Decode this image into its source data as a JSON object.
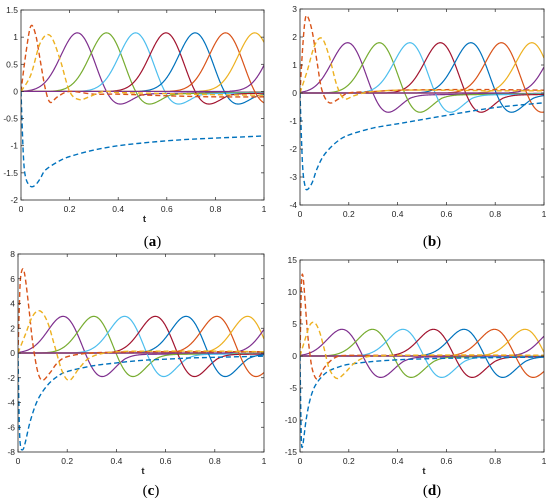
{
  "chart_data": [
    {
      "type": "line",
      "panel_label": "(a)",
      "panel_letter": "a",
      "xlabel": "t",
      "xlim": [
        0,
        1
      ],
      "ylim": [
        -2,
        1.5
      ],
      "xticks": [
        0,
        0.2,
        0.4,
        0.6,
        0.8,
        1
      ],
      "yticks": [
        -2,
        -1.5,
        -1,
        -0.5,
        0,
        0.5,
        1,
        1.5
      ],
      "xtick_labels": [
        "0",
        "0.2",
        "0.4",
        "0.6",
        "0.8",
        "1"
      ],
      "ytick_labels": [
        "-2",
        "-1.5",
        "-1",
        "-0.5",
        "0",
        "0.5",
        "1",
        "1.5"
      ],
      "dashed_series": [
        {
          "color": "#0072BD",
          "x": [
            0,
            0.01,
            0.02,
            0.04,
            0.06,
            0.08,
            0.1,
            0.15,
            0.2,
            0.3,
            0.4,
            0.5,
            0.6,
            0.7,
            0.8,
            0.9,
            1
          ],
          "y": [
            0,
            -1.2,
            -1.6,
            -1.75,
            -1.72,
            -1.6,
            -1.45,
            -1.3,
            -1.2,
            -1.08,
            -1.0,
            -0.95,
            -0.91,
            -0.88,
            -0.86,
            -0.84,
            -0.82
          ]
        },
        {
          "color": "#D95319",
          "x": [
            0,
            0.02,
            0.04,
            0.06,
            0.08,
            0.1,
            0.12,
            0.15,
            0.2,
            0.3,
            0.4,
            0.6,
            0.8,
            1
          ],
          "y": [
            0,
            0.7,
            1.2,
            1.05,
            0.55,
            0.05,
            -0.2,
            -0.1,
            0.0,
            -0.05,
            -0.05,
            -0.08,
            -0.1,
            -0.1
          ]
        },
        {
          "color": "#EDB120",
          "x": [
            0,
            0.04,
            0.08,
            0.12,
            0.16,
            0.2,
            0.24,
            0.28,
            0.34,
            0.4,
            0.6,
            0.8,
            1
          ],
          "y": [
            0,
            0.3,
            0.9,
            1.03,
            0.6,
            0.0,
            -0.15,
            -0.1,
            0.0,
            -0.02,
            -0.04,
            -0.06,
            -0.07
          ]
        }
      ],
      "peaks": {
        "centers": [
          0.235,
          0.355,
          0.475,
          0.6,
          0.72,
          0.845,
          0.965,
          1.09
        ],
        "amplitude": 1.1,
        "width": 0.072,
        "trough_ratio": 0.28
      }
    },
    {
      "type": "line",
      "panel_label": "(b)",
      "panel_letter": "b",
      "xlabel": "",
      "xlim": [
        0,
        1
      ],
      "ylim": [
        -4,
        3
      ],
      "xticks": [
        0,
        0.2,
        0.4,
        0.6,
        0.8,
        1
      ],
      "yticks": [
        -4,
        -3,
        -2,
        -1,
        0,
        1,
        2,
        3
      ],
      "xtick_labels": [
        "0",
        "0.2",
        "0.4",
        "0.6",
        "0.8",
        "1"
      ],
      "ytick_labels": [
        "-4",
        "-3",
        "-2",
        "-1",
        "0",
        "1",
        "2",
        "3"
      ],
      "dashed_series": [
        {
          "color": "#0072BD",
          "x": [
            0,
            0.01,
            0.02,
            0.03,
            0.05,
            0.07,
            0.1,
            0.15,
            0.2,
            0.3,
            0.4,
            0.5,
            0.6,
            0.7,
            0.8,
            0.9,
            1
          ],
          "y": [
            0,
            -2.5,
            -3.3,
            -3.45,
            -3.2,
            -2.7,
            -2.2,
            -1.75,
            -1.5,
            -1.25,
            -1.1,
            -0.95,
            -0.8,
            -0.65,
            -0.52,
            -0.43,
            -0.35
          ]
        },
        {
          "color": "#D95319",
          "x": [
            0,
            0.01,
            0.02,
            0.03,
            0.05,
            0.07,
            0.09,
            0.12,
            0.16,
            0.2,
            0.3,
            0.4,
            0.6,
            0.8,
            1
          ],
          "y": [
            0,
            1.5,
            2.55,
            2.75,
            2.2,
            1.1,
            0.1,
            -0.35,
            -0.2,
            0.0,
            0.05,
            0.1,
            0.12,
            0.12,
            0.1
          ]
        },
        {
          "color": "#EDB120",
          "x": [
            0,
            0.03,
            0.06,
            0.09,
            0.12,
            0.15,
            0.18,
            0.22,
            0.26,
            0.3,
            0.4,
            0.6,
            0.8,
            1
          ],
          "y": [
            0,
            0.8,
            1.7,
            1.95,
            1.3,
            0.3,
            -0.2,
            -0.1,
            0.0,
            0.05,
            0.1,
            0.1,
            0.08,
            0.08
          ]
        }
      ],
      "peaks": {
        "centers": [
          0.2,
          0.33,
          0.455,
          0.58,
          0.705,
          0.83,
          0.955,
          1.08
        ],
        "amplitude": 1.85,
        "width": 0.07,
        "trough_ratio": 0.45
      }
    },
    {
      "type": "line",
      "panel_label": "(c)",
      "panel_letter": "c",
      "xlabel": "t",
      "xlim": [
        0,
        1
      ],
      "ylim": [
        -8,
        8
      ],
      "xticks": [
        0,
        0.2,
        0.4,
        0.6,
        0.8,
        1
      ],
      "yticks": [
        -8,
        -6,
        -4,
        -2,
        0,
        2,
        4,
        6,
        8
      ],
      "xtick_labels": [
        "0",
        "0.2",
        "0.4",
        "0.6",
        "0.8",
        "1"
      ],
      "ytick_labels": [
        "-8",
        "-6",
        "-4",
        "-2",
        "0",
        "2",
        "4",
        "6",
        "8"
      ],
      "dashed_series": [
        {
          "color": "#0072BD",
          "x": [
            0,
            0.005,
            0.01,
            0.02,
            0.03,
            0.05,
            0.08,
            0.12,
            0.16,
            0.2,
            0.3,
            0.4,
            0.5,
            0.6,
            0.7,
            0.8,
            0.9,
            1
          ],
          "y": [
            0,
            -5.5,
            -7.5,
            -7.8,
            -7.2,
            -5.5,
            -3.8,
            -2.6,
            -1.9,
            -1.5,
            -1.05,
            -0.8,
            -0.6,
            -0.5,
            -0.4,
            -0.35,
            -0.3,
            -0.25
          ]
        },
        {
          "color": "#D95319",
          "x": [
            0,
            0.005,
            0.01,
            0.02,
            0.03,
            0.045,
            0.06,
            0.08,
            0.1,
            0.13,
            0.16,
            0.2,
            0.3,
            0.5,
            0.7,
            1
          ],
          "y": [
            0,
            3.5,
            6.0,
            6.8,
            6.0,
            3.5,
            0.8,
            -1.5,
            -2.2,
            -1.6,
            -0.8,
            -0.3,
            0.0,
            0.1,
            0.1,
            0.1
          ]
        },
        {
          "color": "#EDB120",
          "x": [
            0,
            0.03,
            0.06,
            0.09,
            0.12,
            0.15,
            0.18,
            0.21,
            0.25,
            0.3,
            0.4,
            0.6,
            0.8,
            1
          ],
          "y": [
            0,
            1.5,
            3.0,
            3.4,
            2.5,
            0.5,
            -1.5,
            -2.2,
            -1.2,
            -0.3,
            0.1,
            0.15,
            0.15,
            0.1
          ]
        }
      ],
      "peaks": {
        "centers": [
          0.19,
          0.315,
          0.44,
          0.565,
          0.69,
          0.815,
          0.94,
          1.065
        ],
        "amplitude": 3.1,
        "width": 0.068,
        "trough_ratio": 0.7
      }
    },
    {
      "type": "line",
      "panel_label": "(d)",
      "panel_letter": "d",
      "xlabel": "t",
      "xlim": [
        0,
        1
      ],
      "ylim": [
        -15,
        15
      ],
      "xticks": [
        0,
        0.2,
        0.4,
        0.6,
        0.8,
        1
      ],
      "yticks": [
        -15,
        -10,
        -5,
        0,
        5,
        10,
        15
      ],
      "xtick_labels": [
        "0",
        "0.2",
        "0.4",
        "0.6",
        "0.8",
        "1"
      ],
      "ytick_labels": [
        "-15",
        "-10",
        "-5",
        "0",
        "5",
        "10",
        "15"
      ],
      "dashed_series": [
        {
          "color": "#0072BD",
          "x": [
            0,
            0.003,
            0.006,
            0.01,
            0.015,
            0.025,
            0.04,
            0.06,
            0.09,
            0.12,
            0.16,
            0.2,
            0.3,
            0.4,
            0.5,
            0.6,
            0.7,
            0.8,
            0.9,
            1
          ],
          "y": [
            0,
            -8,
            -13.5,
            -14.2,
            -13,
            -10,
            -7,
            -4.8,
            -3.2,
            -2.3,
            -1.7,
            -1.3,
            -0.85,
            -0.6,
            -0.45,
            -0.35,
            -0.3,
            -0.25,
            -0.2,
            -0.18
          ]
        },
        {
          "color": "#D95319",
          "x": [
            0,
            0.003,
            0.006,
            0.01,
            0.015,
            0.02,
            0.03,
            0.04,
            0.05,
            0.065,
            0.08,
            0.1,
            0.13,
            0.16,
            0.2,
            0.3,
            0.5,
            0.7,
            1
          ],
          "y": [
            0,
            6,
            11.5,
            12.8,
            11.5,
            9,
            4,
            0.5,
            -2.0,
            -3.5,
            -3.2,
            -1.8,
            -0.6,
            0.0,
            0.1,
            0.1,
            0.1,
            0.1,
            0.1
          ]
        },
        {
          "color": "#EDB120",
          "x": [
            0,
            0.02,
            0.04,
            0.06,
            0.08,
            0.1,
            0.12,
            0.15,
            0.18,
            0.22,
            0.26,
            0.3,
            0.4,
            0.6,
            0.8,
            1
          ],
          "y": [
            0,
            2.5,
            4.8,
            5.2,
            3.8,
            1.0,
            -2.0,
            -3.5,
            -2.8,
            -1.2,
            -0.3,
            0.0,
            0.1,
            0.15,
            0.15,
            0.1
          ]
        }
      ],
      "peaks": {
        "centers": [
          0.18,
          0.305,
          0.43,
          0.555,
          0.68,
          0.805,
          0.93,
          1.055
        ],
        "amplitude": 4.4,
        "width": 0.068,
        "trough_ratio": 0.85
      }
    }
  ],
  "solid_colors": [
    "#7E2F8E",
    "#77AC30",
    "#4DBEEE",
    "#A2142F",
    "#0072BD",
    "#D95319",
    "#EDB120",
    "#7E2F8E"
  ]
}
